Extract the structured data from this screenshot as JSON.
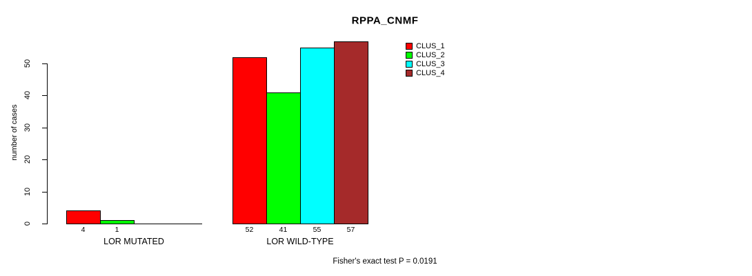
{
  "chart_data": {
    "type": "bar",
    "title": "RPPA_CNMF",
    "ylabel": "number of cases",
    "xlabel": "",
    "ylim": [
      0,
      50
    ],
    "yticks": [
      0,
      10,
      20,
      30,
      40,
      50
    ],
    "grid": false,
    "legend_position": "top-right",
    "series": [
      {
        "name": "CLUS_1",
        "color": "#FF0000"
      },
      {
        "name": "CLUS_2",
        "color": "#00FF00"
      },
      {
        "name": "CLUS_3",
        "color": "#00FFFF"
      },
      {
        "name": "CLUS_4",
        "color": "#A52A2A"
      }
    ],
    "groups": [
      {
        "label": "LOR MUTATED",
        "values": [
          4,
          1,
          0,
          0
        ]
      },
      {
        "label": "LOR WILD-TYPE",
        "values": [
          52,
          41,
          55,
          57
        ]
      }
    ],
    "annotation": "Fisher's exact test P = 0.0191"
  }
}
